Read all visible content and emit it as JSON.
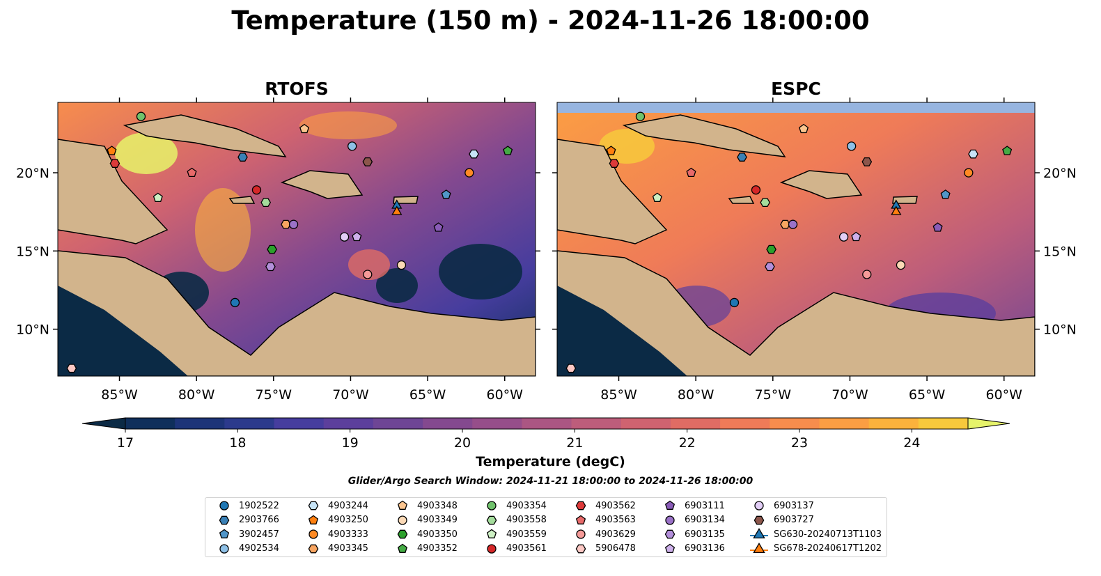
{
  "title": "Temperature (150 m) - 2024-11-26 18:00:00",
  "panels": [
    {
      "name": "RTOFS"
    },
    {
      "name": "ESPC"
    }
  ],
  "lon_ticks": [
    "85°W",
    "80°W",
    "75°W",
    "70°W",
    "65°W",
    "60°W"
  ],
  "lat_ticks": [
    "20°N",
    "15°N",
    "10°N"
  ],
  "colorbar": {
    "label": "Temperature (degC)",
    "ticks": [
      "17",
      "18",
      "19",
      "20",
      "21",
      "22",
      "23",
      "24"
    ],
    "min": 16.25,
    "max": 24.5,
    "colors": [
      "#0b2a45",
      "#0f2f5b",
      "#1d3478",
      "#2c3a8c",
      "#463d9e",
      "#5c3f9c",
      "#6e4595",
      "#84498f",
      "#964e8a",
      "#ab5683",
      "#bd5d7b",
      "#cf6370",
      "#e06c64",
      "#ef7b58",
      "#f78d4d",
      "#fb9e43",
      "#fbb23c",
      "#f7c93c",
      "#e6f36a"
    ],
    "land": "#d2b48c",
    "shelf": "#97b5e0"
  },
  "search_window": "Glider/Argo Search Window: 2024-11-21 18:00:00 to 2024-11-26 18:00:00",
  "legend": [
    {
      "label": "1902522",
      "marker": "circle",
      "color": "#1f77b4"
    },
    {
      "label": "2903766",
      "marker": "hexagon",
      "color": "#3a80b5"
    },
    {
      "label": "3902457",
      "marker": "pentagon",
      "color": "#5196c9"
    },
    {
      "label": "4902534",
      "marker": "circle",
      "color": "#8ec0e6"
    },
    {
      "label": "4903244",
      "marker": "hexagon",
      "color": "#c7e4f7"
    },
    {
      "label": "4903250",
      "marker": "pentagon",
      "color": "#ff7f0e"
    },
    {
      "label": "4903333",
      "marker": "circle",
      "color": "#ff8a24"
    },
    {
      "label": "4903345",
      "marker": "hexagon",
      "color": "#f8a561"
    },
    {
      "label": "4903348",
      "marker": "pentagon",
      "color": "#fbc58f"
    },
    {
      "label": "4903349",
      "marker": "circle",
      "color": "#fbd9b6"
    },
    {
      "label": "4903350",
      "marker": "hexagon",
      "color": "#2ca02c"
    },
    {
      "label": "4903352",
      "marker": "pentagon",
      "color": "#44ab44"
    },
    {
      "label": "4903354",
      "marker": "circle",
      "color": "#70c26c"
    },
    {
      "label": "4903558",
      "marker": "hexagon",
      "color": "#a4dc9c"
    },
    {
      "label": "4903559",
      "marker": "pentagon",
      "color": "#cdf0c4"
    },
    {
      "label": "4903561",
      "marker": "circle",
      "color": "#d62728"
    },
    {
      "label": "4903562",
      "marker": "hexagon",
      "color": "#dd3a3a"
    },
    {
      "label": "4903563",
      "marker": "pentagon",
      "color": "#e86a6a"
    },
    {
      "label": "4903629",
      "marker": "circle",
      "color": "#f59a98"
    },
    {
      "label": "5906478",
      "marker": "hexagon",
      "color": "#fcc8c4"
    },
    {
      "label": "6903111",
      "marker": "pentagon",
      "color": "#8a5cb8"
    },
    {
      "label": "6903134",
      "marker": "circle",
      "color": "#9b72c8"
    },
    {
      "label": "6903135",
      "marker": "hexagon",
      "color": "#b38fda"
    },
    {
      "label": "6903136",
      "marker": "pentagon",
      "color": "#cdb0ea"
    },
    {
      "label": "6903137",
      "marker": "circle",
      "color": "#e2cef6"
    },
    {
      "label": "6903727",
      "marker": "hexagon",
      "color": "#8c564b"
    },
    {
      "label": "SG630-20240713T1103",
      "marker": "triangle-line",
      "color": "#1f77b4"
    },
    {
      "label": "SG678-20240617T1202",
      "marker": "triangle-line",
      "color": "#ff7f0e"
    }
  ],
  "chart_data": {
    "type": "scatter",
    "xlabel": "",
    "ylabel": "",
    "xlim": [
      -89,
      -58
    ],
    "ylim": [
      7,
      24.5
    ],
    "platforms": [
      {
        "id": "1902522",
        "lon": -77.5,
        "lat": 11.7
      },
      {
        "id": "2903766",
        "lon": -77.0,
        "lat": 21.0
      },
      {
        "id": "3902457",
        "lon": -63.8,
        "lat": 18.6
      },
      {
        "id": "4902534",
        "lon": -69.9,
        "lat": 21.7
      },
      {
        "id": "4903244",
        "lon": -62.0,
        "lat": 21.2
      },
      {
        "id": "4903250",
        "lon": -85.5,
        "lat": 21.4
      },
      {
        "id": "4903333",
        "lon": -62.3,
        "lat": 20.0
      },
      {
        "id": "4903345",
        "lon": -74.2,
        "lat": 16.7
      },
      {
        "id": "4903348",
        "lon": -73.0,
        "lat": 22.8
      },
      {
        "id": "4903349",
        "lon": -66.7,
        "lat": 14.1
      },
      {
        "id": "4903350",
        "lon": -75.1,
        "lat": 15.1
      },
      {
        "id": "4903352",
        "lon": -59.8,
        "lat": 21.4
      },
      {
        "id": "4903354",
        "lon": -83.6,
        "lat": 23.6
      },
      {
        "id": "4903558",
        "lon": -75.5,
        "lat": 18.1
      },
      {
        "id": "4903559",
        "lon": -82.5,
        "lat": 18.4
      },
      {
        "id": "4903561",
        "lon": -76.1,
        "lat": 18.9
      },
      {
        "id": "4903562",
        "lon": -85.3,
        "lat": 20.6
      },
      {
        "id": "4903563",
        "lon": -80.3,
        "lat": 20.0
      },
      {
        "id": "4903629",
        "lon": -68.9,
        "lat": 13.5
      },
      {
        "id": "5906478",
        "lon": -88.1,
        "lat": 7.5
      },
      {
        "id": "6903111",
        "lon": -64.3,
        "lat": 16.5
      },
      {
        "id": "6903134",
        "lon": -73.7,
        "lat": 16.7
      },
      {
        "id": "6903135",
        "lon": -75.2,
        "lat": 14.0
      },
      {
        "id": "6903136",
        "lon": -69.6,
        "lat": 15.9
      },
      {
        "id": "6903137",
        "lon": -70.4,
        "lat": 15.9
      },
      {
        "id": "6903727",
        "lon": -68.9,
        "lat": 20.7
      },
      {
        "id": "SG630-20240713T1103",
        "lon": -67.0,
        "lat": 17.9
      },
      {
        "id": "SG678-20240617T1202",
        "lon": -67.0,
        "lat": 17.5
      }
    ]
  }
}
